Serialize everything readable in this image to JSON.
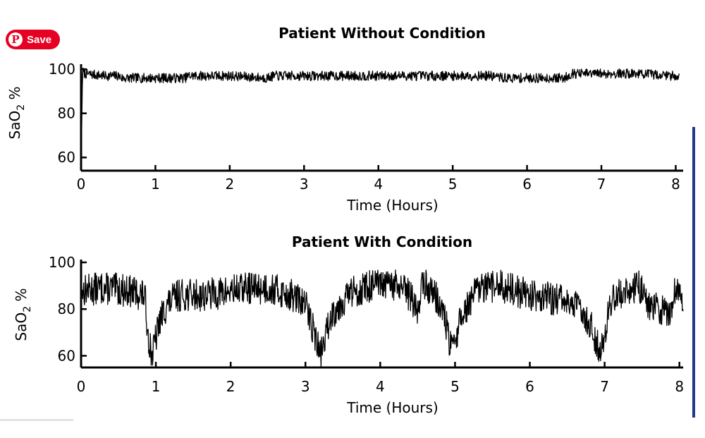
{
  "overlay": {
    "save_label": "Save",
    "icon": "pinterest-icon",
    "color": "#e60023"
  },
  "chart_data": [
    {
      "type": "line",
      "title": "Patient Without Condition",
      "xlabel": "Time (Hours)",
      "ylabel": "SaO2 %",
      "ylabel_main": "SaO",
      "ylabel_sub": "2",
      "ylabel_suffix": " %",
      "xlim": [
        0,
        8.1
      ],
      "ylim": [
        54,
        101
      ],
      "xticks": [
        0,
        1,
        2,
        3,
        4,
        5,
        6,
        7,
        8
      ],
      "xtick_labels": [
        "0",
        "1",
        "2",
        "3",
        "4",
        "5",
        "6",
        "7",
        "8"
      ],
      "yticks": [
        60,
        80,
        100
      ],
      "ytick_labels": [
        "60",
        "80",
        "100"
      ],
      "grid": false,
      "series": [
        {
          "color": "#000000",
          "x": [
            0,
            0.02,
            0.05,
            0.3,
            0.5,
            0.55,
            1.0,
            1.4,
            1.45,
            2.0,
            2.5,
            2.6,
            3.0,
            3.5,
            4.0,
            4.5,
            5.0,
            5.5,
            5.7,
            6.0,
            6.5,
            6.6,
            7.0,
            7.5,
            8.0,
            8.05
          ],
          "y": [
            55,
            99,
            98,
            97,
            97,
            96,
            96,
            96,
            97,
            97,
            96,
            97,
            97,
            97,
            97,
            97,
            97,
            97,
            96,
            96,
            96,
            98,
            98,
            98,
            97,
            97
          ]
        }
      ]
    },
    {
      "type": "line",
      "title": "Patient With Condition",
      "xlabel": "Time (Hours)",
      "ylabel": "SaO2 %",
      "ylabel_main": "SaO",
      "ylabel_sub": "2",
      "ylabel_suffix": " %",
      "xlim": [
        0,
        8.05
      ],
      "ylim": [
        55,
        100
      ],
      "xticks": [
        0,
        1,
        2,
        3,
        4,
        5,
        6,
        7,
        8
      ],
      "xtick_labels": [
        "0",
        "1",
        "2",
        "3",
        "4",
        "5",
        "6",
        "7",
        "8"
      ],
      "yticks": [
        60,
        80,
        100
      ],
      "ytick_labels": [
        "60",
        "80",
        "100"
      ],
      "grid": false,
      "series": [
        {
          "color": "#000000",
          "x": [
            0,
            0.3,
            0.6,
            0.85,
            0.9,
            0.95,
            1.05,
            1.15,
            1.3,
            1.6,
            1.9,
            2.2,
            2.5,
            2.8,
            3.0,
            3.1,
            3.2,
            3.35,
            3.6,
            3.9,
            4.2,
            4.4,
            4.5,
            4.55,
            4.7,
            4.85,
            4.95,
            5.1,
            5.3,
            5.6,
            6.0,
            6.4,
            6.7,
            6.85,
            6.95,
            7.1,
            7.3,
            7.45,
            7.6,
            7.8,
            7.85,
            7.95,
            8.05
          ],
          "y": [
            88,
            89,
            88,
            86,
            68,
            60,
            75,
            82,
            86,
            86,
            87,
            89,
            89,
            86,
            82,
            72,
            60,
            78,
            87,
            90,
            90,
            86,
            78,
            91,
            88,
            78,
            62,
            78,
            88,
            90,
            86,
            84,
            80,
            70,
            62,
            85,
            88,
            90,
            82,
            79,
            78,
            88,
            86
          ]
        }
      ]
    }
  ]
}
